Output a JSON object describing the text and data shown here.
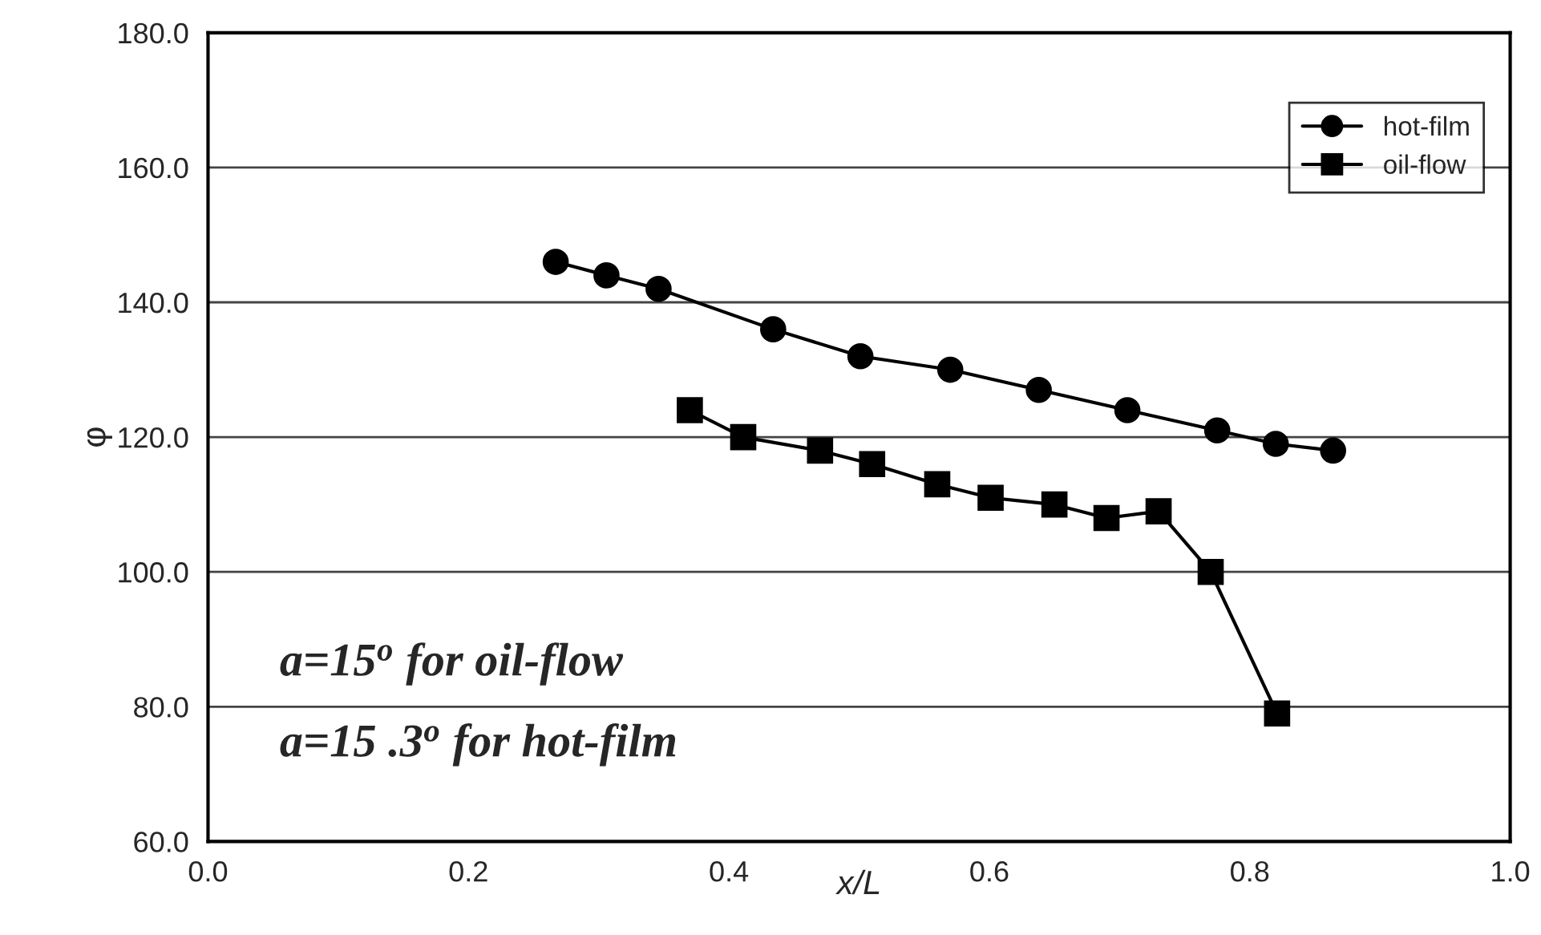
{
  "chart_data": {
    "type": "line",
    "xlabel": "x/L",
    "ylabel": "φ",
    "series": [
      {
        "name": "hot-film",
        "color": "#000000",
        "marker": "circle",
        "x": [
          0.267,
          0.306,
          0.346,
          0.434,
          0.501,
          0.57,
          0.638,
          0.706,
          0.775,
          0.82,
          0.864
        ],
        "values": [
          146,
          144,
          142,
          136,
          132,
          130,
          127,
          124,
          121,
          119,
          118
        ]
      },
      {
        "name": "oil-flow",
        "color": "#000000",
        "marker": "square",
        "x": [
          0.37,
          0.411,
          0.47,
          0.51,
          0.56,
          0.601,
          0.65,
          0.69,
          0.73,
          0.77,
          0.821
        ],
        "values": [
          124,
          120,
          118,
          116,
          113,
          111,
          110,
          108,
          109,
          100,
          79
        ]
      }
    ],
    "xlim": [
      0,
      1
    ],
    "ylim": [
      60,
      180
    ],
    "xticks": [
      {
        "value": 0,
        "label": "0.0"
      },
      {
        "value": 0.2,
        "label": "0.2"
      },
      {
        "value": 0.4,
        "label": "0.4"
      },
      {
        "value": 0.6,
        "label": "0.6"
      },
      {
        "value": 0.8,
        "label": "0.8"
      },
      {
        "value": 1,
        "label": "1.0"
      }
    ],
    "yticks": [
      {
        "value": 60,
        "label": "60.0"
      },
      {
        "value": 80,
        "label": "80.0"
      },
      {
        "value": 100,
        "label": "100.0"
      },
      {
        "value": 120,
        "label": "120.0"
      },
      {
        "value": 140,
        "label": "140.0"
      },
      {
        "value": 160,
        "label": "160.0"
      },
      {
        "value": 180,
        "label": "180.0"
      }
    ],
    "grid": "y",
    "legend": "top right",
    "line_style": "solid",
    "annotations": [
      "a=15$^{o}$ for oil-flow",
      "a=15 .3$^{o}$ for hot-film"
    ]
  }
}
